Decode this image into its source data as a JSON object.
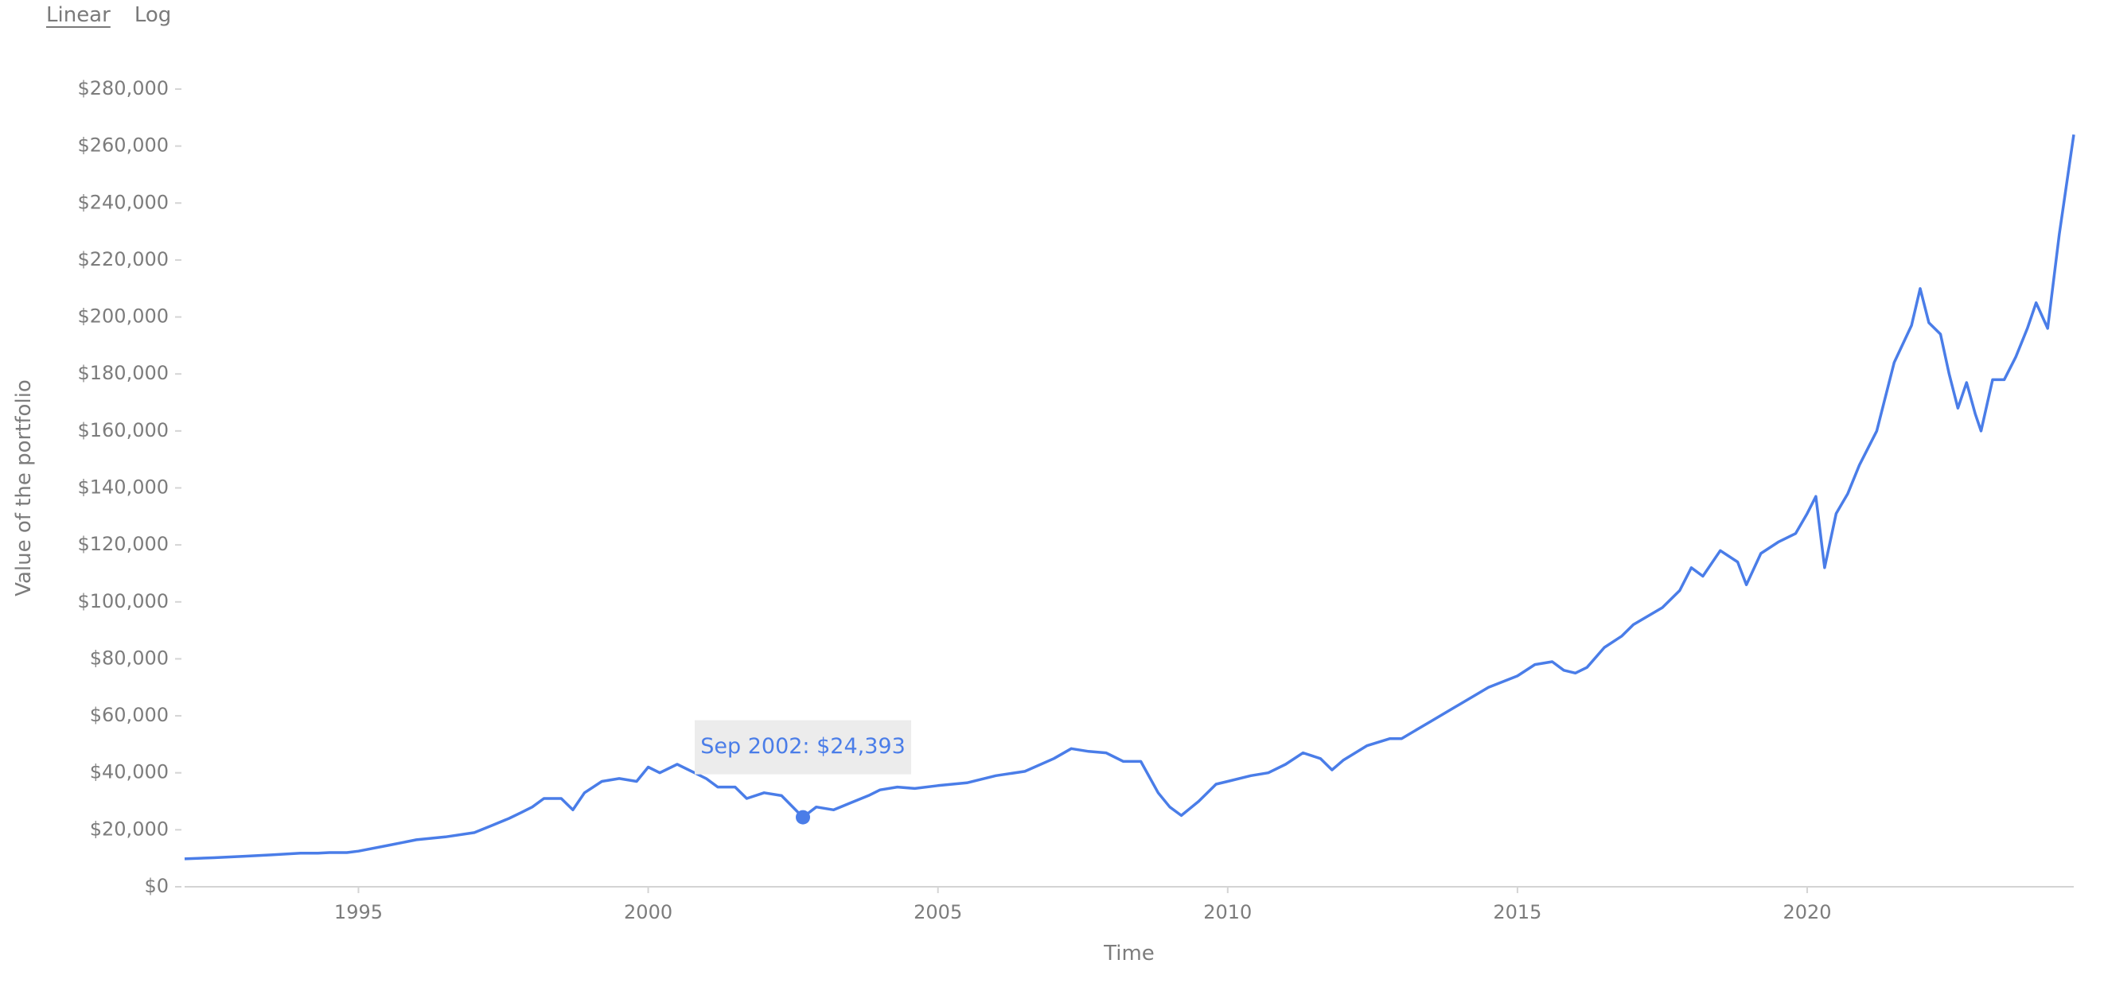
{
  "controls": {
    "linear_label": "Linear",
    "log_label": "Log",
    "active": "Linear"
  },
  "colors": {
    "line": "#4a7de8",
    "axis": "#d4d4d4",
    "text": "#7c7c7c",
    "tooltip_bg": "#ececec"
  },
  "tooltip": {
    "text": "Sep 2002: $24,393",
    "x": 2002.67,
    "y": 24393
  },
  "chart_data": {
    "type": "line",
    "title": "",
    "xlabel": "Time",
    "ylabel": "Value of the portfolio",
    "xlim": [
      1992.0,
      2024.6
    ],
    "ylim": [
      0,
      280000
    ],
    "x_ticks": [
      1995,
      2000,
      2005,
      2010,
      2015,
      2020
    ],
    "x_tick_labels": [
      "1995",
      "2000",
      "2005",
      "2010",
      "2015",
      "2020"
    ],
    "y_ticks": [
      0,
      20000,
      40000,
      60000,
      80000,
      100000,
      120000,
      140000,
      160000,
      180000,
      200000,
      220000,
      240000,
      260000,
      280000
    ],
    "y_tick_labels": [
      "$0",
      "$20,000",
      "$40,000",
      "$60,000",
      "$80,000",
      "$100,000",
      "$120,000",
      "$140,000",
      "$160,000",
      "$180,000",
      "$200,000",
      "$220,000",
      "$240,000",
      "$260,000",
      "$280,000"
    ],
    "grid": false,
    "series": [
      {
        "x": [
          1992.0,
          1992.5,
          1993.0,
          1993.5,
          1994.0,
          1994.3,
          1994.5,
          1994.8,
          1995.0,
          1995.5,
          1996.0,
          1996.5,
          1997.0,
          1997.3,
          1997.6,
          1997.8,
          1998.0,
          1998.2,
          1998.5,
          1998.7,
          1998.9,
          1999.2,
          1999.5,
          1999.8,
          2000.0,
          2000.2,
          2000.5,
          2000.8,
          2001.0,
          2001.2,
          2001.5,
          2001.7,
          2002.0,
          2002.3,
          2002.67,
          2002.9,
          2003.2,
          2003.5,
          2003.8,
          2004.0,
          2004.3,
          2004.6,
          2005.0,
          2005.5,
          2006.0,
          2006.5,
          2007.0,
          2007.3,
          2007.6,
          2007.9,
          2008.2,
          2008.5,
          2008.8,
          2009.0,
          2009.2,
          2009.5,
          2009.8,
          2010.0,
          2010.4,
          2010.7,
          2011.0,
          2011.3,
          2011.6,
          2011.8,
          2012.0,
          2012.4,
          2012.8,
          2013.0,
          2013.5,
          2014.0,
          2014.5,
          2015.0,
          2015.3,
          2015.6,
          2015.8,
          2016.0,
          2016.2,
          2016.5,
          2016.8,
          2017.0,
          2017.5,
          2017.8,
          2018.0,
          2018.2,
          2018.5,
          2018.8,
          2018.95,
          2019.2,
          2019.5,
          2019.8,
          2020.0,
          2020.15,
          2020.3,
          2020.5,
          2020.7,
          2020.9,
          2021.2,
          2021.5,
          2021.8,
          2021.95,
          2022.1,
          2022.3,
          2022.45,
          2022.6,
          2022.75,
          2022.9,
          2023.0,
          2023.2,
          2023.4,
          2023.6,
          2023.8,
          2023.95,
          2024.15,
          2024.35,
          2024.6
        ],
        "y": [
          9800,
          10200,
          10700,
          11200,
          11800,
          11800,
          12000,
          12000,
          12500,
          14500,
          16500,
          17500,
          19000,
          21500,
          24000,
          26000,
          28000,
          31000,
          31000,
          27000,
          33000,
          37000,
          38000,
          37000,
          42000,
          40000,
          43000,
          40000,
          38000,
          35000,
          35000,
          31000,
          33000,
          32000,
          24393,
          28000,
          27000,
          29500,
          32000,
          34000,
          35000,
          34500,
          35500,
          36500,
          39000,
          40500,
          45000,
          48500,
          47500,
          47000,
          44000,
          44000,
          33000,
          28000,
          25000,
          30000,
          36000,
          37000,
          39000,
          40000,
          43000,
          47000,
          45000,
          41000,
          44500,
          49500,
          52000,
          52000,
          58000,
          64000,
          70000,
          74000,
          78000,
          79000,
          76000,
          75000,
          77000,
          84000,
          88000,
          92000,
          98000,
          104000,
          112000,
          109000,
          118000,
          114000,
          106000,
          117000,
          121000,
          124000,
          131000,
          137000,
          112000,
          131000,
          138000,
          148000,
          160000,
          184000,
          197000,
          210000,
          198000,
          194000,
          180000,
          168000,
          177000,
          166000,
          160000,
          178000,
          178000,
          186000,
          196000,
          205000,
          196000,
          229000,
          264000
        ],
        "color": "#4a7de8"
      }
    ]
  }
}
